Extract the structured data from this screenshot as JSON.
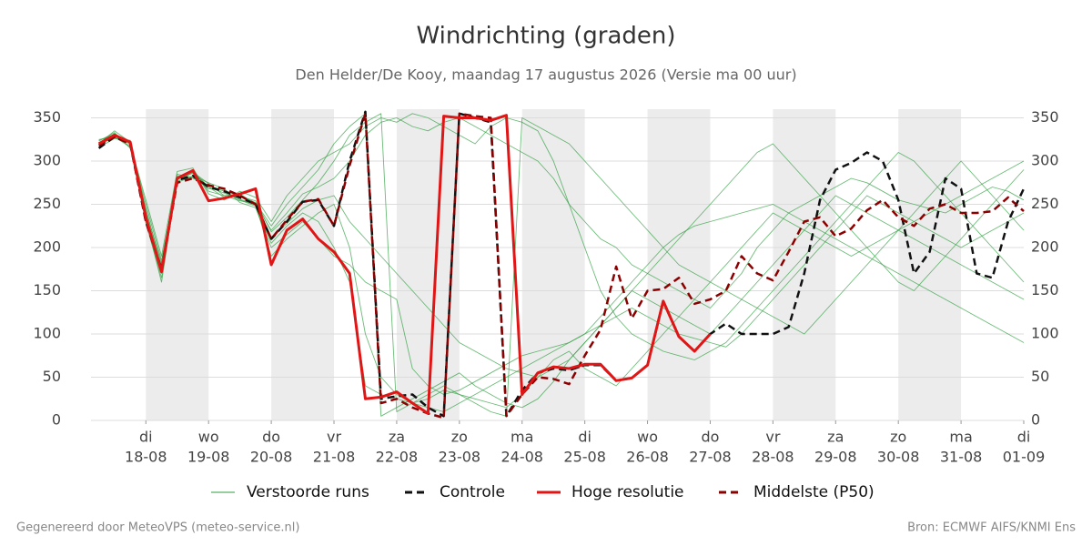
{
  "chart_data": {
    "type": "line",
    "title": "Windrichting (graden)",
    "subtitle": "Den Helder/De Kooy, maandag 17 augustus 2026 (Versie ma 00 uur)",
    "footer_left": "Gegenereerd door MeteoVPS (meteo-service.nl)",
    "footer_right": "Bron: ECMWF AIFS/KNMI Ens",
    "x": [
      6,
      12,
      18,
      24,
      30,
      36,
      42,
      48,
      54,
      60,
      66,
      72,
      78,
      84,
      90,
      96,
      102,
      108,
      114,
      120,
      126,
      132,
      138,
      144,
      150,
      156,
      162,
      168,
      174,
      180,
      186,
      192,
      198,
      204,
      210,
      216,
      222,
      228,
      234,
      240,
      246,
      252,
      258,
      264,
      270,
      276,
      282,
      288,
      294,
      300,
      306,
      312,
      318,
      324,
      330,
      336,
      342,
      348,
      354,
      360
    ],
    "xlim": [
      3,
      360
    ],
    "xticks": [
      {
        "value": 24,
        "label": "di",
        "date": "18-08"
      },
      {
        "value": 48,
        "label": "wo",
        "date": "19-08"
      },
      {
        "value": 72,
        "label": "do",
        "date": "20-08"
      },
      {
        "value": 96,
        "label": "vr",
        "date": "21-08"
      },
      {
        "value": 120,
        "label": "za",
        "date": "22-08"
      },
      {
        "value": 144,
        "label": "zo",
        "date": "23-08"
      },
      {
        "value": 168,
        "label": "ma",
        "date": "24-08"
      },
      {
        "value": 192,
        "label": "di",
        "date": "25-08"
      },
      {
        "value": 216,
        "label": "wo",
        "date": "26-08"
      },
      {
        "value": 240,
        "label": "do",
        "date": "27-08"
      },
      {
        "value": 264,
        "label": "vr",
        "date": "28-08"
      },
      {
        "value": 288,
        "label": "za",
        "date": "29-08"
      },
      {
        "value": 312,
        "label": "zo",
        "date": "30-08"
      },
      {
        "value": 336,
        "label": "ma",
        "date": "31-08"
      },
      {
        "value": 360,
        "label": "di",
        "date": "01-09"
      }
    ],
    "ylim": [
      0,
      360
    ],
    "yticks": [
      0,
      50,
      100,
      150,
      200,
      250,
      300,
      350
    ],
    "grid": true,
    "ensemble": {
      "name": "Verstoorde runs",
      "color": "#2e9e3e",
      "runs": [
        [
          318,
          332,
          320,
          250,
          185,
          278,
          290,
          265,
          260,
          262,
          250,
          220,
          240,
          262,
          270,
          280,
          300,
          330,
          345,
          350,
          340,
          335,
          345,
          350,
          340,
          330,
          320,
          310,
          300,
          280,
          250,
          230,
          210,
          200,
          180,
          170,
          160,
          150,
          140,
          130,
          150,
          170,
          200,
          220,
          240,
          250,
          260,
          270,
          280,
          275,
          265,
          255,
          250,
          245,
          240,
          250,
          260,
          270,
          265,
          255
        ],
        [
          325,
          328,
          316,
          235,
          170,
          285,
          280,
          272,
          265,
          255,
          248,
          205,
          225,
          240,
          230,
          200,
          160,
          40,
          30,
          25,
          20,
          15,
          10,
          20,
          30,
          40,
          50,
          60,
          70,
          80,
          90,
          100,
          110,
          120,
          130,
          120,
          110,
          100,
          95,
          90,
          85,
          100,
          120,
          140,
          160,
          180,
          200,
          220,
          240,
          260,
          250,
          240,
          230,
          220,
          210,
          200,
          210,
          220,
          230,
          240
        ],
        [
          320,
          335,
          322,
          245,
          178,
          280,
          288,
          270,
          258,
          260,
          252,
          225,
          250,
          270,
          290,
          320,
          340,
          355,
          5,
          15,
          25,
          35,
          45,
          55,
          40,
          30,
          20,
          15,
          25,
          45,
          70,
          90,
          110,
          130,
          150,
          170,
          190,
          210,
          230,
          250,
          270,
          290,
          310,
          320,
          300,
          280,
          260,
          240,
          220,
          200,
          180,
          160,
          150,
          170,
          190,
          210,
          230,
          250,
          270,
          290
        ],
        [
          316,
          326,
          324,
          228,
          165,
          275,
          283,
          275,
          268,
          252,
          246,
          200,
          215,
          230,
          210,
          190,
          180,
          160,
          150,
          140,
          60,
          40,
          30,
          35,
          45,
          55,
          65,
          75,
          80,
          85,
          90,
          100,
          120,
          140,
          160,
          180,
          200,
          215,
          225,
          230,
          235,
          240,
          245,
          250,
          240,
          230,
          220,
          210,
          200,
          190,
          180,
          170,
          160,
          150,
          140,
          130,
          120,
          110,
          100,
          90
        ],
        [
          324,
          331,
          319,
          255,
          190,
          288,
          292,
          262,
          255,
          265,
          258,
          230,
          260,
          280,
          300,
          310,
          320,
          340,
          350,
          345,
          355,
          350,
          340,
          330,
          320,
          340,
          350,
          345,
          335,
          300,
          250,
          200,
          150,
          120,
          100,
          90,
          80,
          75,
          70,
          80,
          90,
          110,
          130,
          150,
          170,
          190,
          210,
          230,
          250,
          270,
          290,
          310,
          300,
          280,
          260,
          240,
          220,
          200,
          180,
          160
        ],
        [
          321,
          329,
          317,
          232,
          160,
          279,
          286,
          270,
          263,
          256,
          249,
          190,
          210,
          225,
          240,
          250,
          200,
          100,
          50,
          30,
          20,
          25,
          35,
          30,
          25,
          20,
          15,
          30,
          50,
          70,
          80,
          60,
          50,
          40,
          60,
          80,
          100,
          120,
          140,
          160,
          180,
          200,
          220,
          240,
          230,
          220,
          210,
          200,
          190,
          200,
          210,
          220,
          230,
          240,
          250,
          260,
          270,
          280,
          290,
          300
        ],
        [
          319,
          327,
          321,
          242,
          182,
          283,
          281,
          268,
          266,
          259,
          254,
          218,
          235,
          255,
          275,
          300,
          330,
          345,
          355,
          10,
          20,
          30,
          40,
          30,
          20,
          10,
          5,
          350,
          340,
          330,
          320,
          300,
          280,
          260,
          240,
          220,
          200,
          180,
          170,
          160,
          150,
          140,
          130,
          120,
          110,
          100,
          120,
          140,
          160,
          180,
          200,
          220,
          240,
          260,
          280,
          300,
          280,
          260,
          240,
          220
        ],
        [
          323,
          333,
          315,
          238,
          175,
          276,
          287,
          274,
          260,
          254,
          251,
          212,
          228,
          245,
          255,
          260,
          230,
          210,
          190,
          170,
          150,
          130,
          110,
          90,
          80,
          70,
          60,
          55,
          50,
          60,
          70,
          90,
          110,
          130,
          150,
          140,
          130,
          120,
          110,
          100,
          120,
          140,
          160,
          180,
          200,
          220,
          240,
          260,
          250,
          240,
          230,
          220,
          210,
          200,
          190,
          180,
          170,
          160,
          150,
          140
        ]
      ]
    },
    "series": [
      {
        "name": "Controle",
        "color": "#111111",
        "style": "dashed",
        "values": [
          315,
          328,
          320,
          230,
          175,
          278,
          283,
          270,
          265,
          258,
          250,
          210,
          230,
          253,
          255,
          225,
          300,
          357,
          25,
          28,
          30,
          15,
          5,
          355,
          350,
          345,
          5,
          35,
          55,
          60,
          58,
          64,
          64,
          46,
          49,
          64,
          138,
          97,
          80,
          100,
          112,
          100,
          100,
          100,
          108,
          170,
          255,
          290,
          298,
          310,
          300,
          255,
          170,
          195,
          280,
          268,
          170,
          165,
          230,
          268
        ]
      },
      {
        "name": "Middelste (P50)",
        "color": "#8b0000",
        "style": "dashed",
        "values": [
          318,
          328,
          320,
          230,
          175,
          275,
          280,
          272,
          268,
          260,
          250,
          210,
          232,
          253,
          256,
          225,
          295,
          355,
          20,
          25,
          15,
          8,
          3,
          355,
          352,
          350,
          5,
          30,
          50,
          48,
          42,
          75,
          105,
          178,
          118,
          150,
          152,
          165,
          135,
          140,
          150,
          190,
          170,
          162,
          195,
          230,
          235,
          213,
          222,
          243,
          255,
          235,
          225,
          245,
          250,
          240,
          240,
          242,
          258,
          242
        ]
      },
      {
        "name": "Hoge resolutie",
        "color": "#e01515",
        "style": "solid",
        "values": [
          320,
          330,
          322,
          235,
          172,
          280,
          289,
          254,
          257,
          262,
          268,
          180,
          220,
          233,
          210,
          195,
          170,
          25,
          27,
          33,
          20,
          8,
          352,
          350,
          350,
          347,
          353,
          30,
          55,
          62,
          60,
          65,
          65,
          46,
          49,
          64,
          138,
          97,
          80,
          100,
          null,
          null,
          null,
          null,
          null,
          null,
          null,
          null,
          null,
          null,
          null,
          null,
          null,
          null,
          null,
          null,
          null,
          null,
          null,
          null
        ]
      }
    ]
  }
}
